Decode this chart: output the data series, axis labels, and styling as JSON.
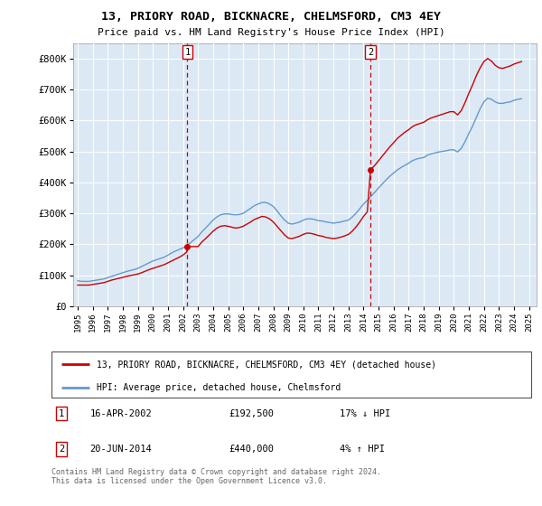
{
  "title": "13, PRIORY ROAD, BICKNACRE, CHELMSFORD, CM3 4EY",
  "subtitle": "Price paid vs. HM Land Registry's House Price Index (HPI)",
  "background_color": "#ffffff",
  "plot_bg_color": "#dce9f5",
  "ylim": [
    0,
    850000
  ],
  "yticks": [
    0,
    100000,
    200000,
    300000,
    400000,
    500000,
    600000,
    700000,
    800000
  ],
  "ytick_labels": [
    "£0",
    "£100K",
    "£200K",
    "£300K",
    "£400K",
    "£500K",
    "£600K",
    "£700K",
    "£800K"
  ],
  "xlim_start": 1994.7,
  "xlim_end": 2025.5,
  "purchase1_x": 2002.29,
  "purchase1_y": 192500,
  "purchase1_label": "16-APR-2002",
  "purchase1_price": "£192,500",
  "purchase1_hpi": "17% ↓ HPI",
  "purchase2_x": 2014.46,
  "purchase2_y": 440000,
  "purchase2_label": "20-JUN-2014",
  "purchase2_price": "£440,000",
  "purchase2_hpi": "4% ↑ HPI",
  "line1_color": "#cc0000",
  "line2_color": "#6699cc",
  "legend_label1": "13, PRIORY ROAD, BICKNACRE, CHELMSFORD, CM3 4EY (detached house)",
  "legend_label2": "HPI: Average price, detached house, Chelmsford",
  "footer": "Contains HM Land Registry data © Crown copyright and database right 2024.\nThis data is licensed under the Open Government Licence v3.0.",
  "hpi_data_x": [
    1995.0,
    1995.25,
    1995.5,
    1995.75,
    1996.0,
    1996.25,
    1996.5,
    1996.75,
    1997.0,
    1997.25,
    1997.5,
    1997.75,
    1998.0,
    1998.25,
    1998.5,
    1998.75,
    1999.0,
    1999.25,
    1999.5,
    1999.75,
    2000.0,
    2000.25,
    2000.5,
    2000.75,
    2001.0,
    2001.25,
    2001.5,
    2001.75,
    2002.0,
    2002.25,
    2002.5,
    2002.75,
    2003.0,
    2003.25,
    2003.5,
    2003.75,
    2004.0,
    2004.25,
    2004.5,
    2004.75,
    2005.0,
    2005.25,
    2005.5,
    2005.75,
    2006.0,
    2006.25,
    2006.5,
    2006.75,
    2007.0,
    2007.25,
    2007.5,
    2007.75,
    2008.0,
    2008.25,
    2008.5,
    2008.75,
    2009.0,
    2009.25,
    2009.5,
    2009.75,
    2010.0,
    2010.25,
    2010.5,
    2010.75,
    2011.0,
    2011.25,
    2011.5,
    2011.75,
    2012.0,
    2012.25,
    2012.5,
    2012.75,
    2013.0,
    2013.25,
    2013.5,
    2013.75,
    2014.0,
    2014.25,
    2014.5,
    2014.75,
    2015.0,
    2015.25,
    2015.5,
    2015.75,
    2016.0,
    2016.25,
    2016.5,
    2016.75,
    2017.0,
    2017.25,
    2017.5,
    2017.75,
    2018.0,
    2018.25,
    2018.5,
    2018.75,
    2019.0,
    2019.25,
    2019.5,
    2019.75,
    2020.0,
    2020.25,
    2020.5,
    2020.75,
    2021.0,
    2021.25,
    2021.5,
    2021.75,
    2022.0,
    2022.25,
    2022.5,
    2022.75,
    2023.0,
    2023.25,
    2023.5,
    2023.75,
    2024.0,
    2024.25,
    2024.5
  ],
  "hpi_data_y": [
    82000,
    80000,
    80000,
    80000,
    82000,
    84000,
    86000,
    88000,
    92000,
    96000,
    100000,
    104000,
    108000,
    112000,
    115000,
    118000,
    122000,
    128000,
    134000,
    140000,
    146000,
    150000,
    154000,
    158000,
    165000,
    172000,
    178000,
    183000,
    188000,
    195000,
    205000,
    215000,
    225000,
    240000,
    252000,
    265000,
    278000,
    288000,
    295000,
    298000,
    298000,
    296000,
    295000,
    296000,
    300000,
    308000,
    316000,
    325000,
    330000,
    335000,
    335000,
    330000,
    322000,
    308000,
    292000,
    278000,
    268000,
    265000,
    268000,
    272000,
    278000,
    282000,
    282000,
    280000,
    276000,
    275000,
    272000,
    270000,
    268000,
    270000,
    272000,
    275000,
    278000,
    288000,
    300000,
    315000,
    330000,
    342000,
    355000,
    368000,
    382000,
    395000,
    408000,
    420000,
    430000,
    440000,
    448000,
    455000,
    462000,
    470000,
    475000,
    478000,
    480000,
    488000,
    492000,
    495000,
    498000,
    500000,
    502000,
    505000,
    505000,
    498000,
    510000,
    532000,
    558000,
    582000,
    610000,
    638000,
    660000,
    672000,
    668000,
    660000,
    655000,
    655000,
    658000,
    660000,
    665000,
    668000,
    670000
  ],
  "price_data_x": [
    1995.0,
    1995.25,
    1995.5,
    1995.75,
    1996.0,
    1996.25,
    1996.5,
    1996.75,
    1997.0,
    1997.25,
    1997.5,
    1997.75,
    1998.0,
    1998.25,
    1998.5,
    1998.75,
    1999.0,
    1999.25,
    1999.5,
    1999.75,
    2000.0,
    2000.25,
    2000.5,
    2000.75,
    2001.0,
    2001.25,
    2001.5,
    2001.75,
    2002.0,
    2002.25,
    2002.29,
    2002.75,
    2003.0,
    2003.25,
    2003.5,
    2003.75,
    2004.0,
    2004.25,
    2004.5,
    2004.75,
    2005.0,
    2005.25,
    2005.5,
    2005.75,
    2006.0,
    2006.25,
    2006.5,
    2006.75,
    2007.0,
    2007.25,
    2007.5,
    2007.75,
    2008.0,
    2008.25,
    2008.5,
    2008.75,
    2009.0,
    2009.25,
    2009.5,
    2009.75,
    2010.0,
    2010.25,
    2010.5,
    2010.75,
    2011.0,
    2011.25,
    2011.5,
    2011.75,
    2012.0,
    2012.25,
    2012.5,
    2012.75,
    2013.0,
    2013.25,
    2013.5,
    2013.75,
    2014.0,
    2014.25,
    2014.46,
    2014.75,
    2015.0,
    2015.25,
    2015.5,
    2015.75,
    2016.0,
    2016.25,
    2016.5,
    2016.75,
    2017.0,
    2017.25,
    2017.5,
    2017.75,
    2018.0,
    2018.25,
    2018.5,
    2018.75,
    2019.0,
    2019.25,
    2019.5,
    2019.75,
    2020.0,
    2020.25,
    2020.5,
    2020.75,
    2021.0,
    2021.25,
    2021.5,
    2021.75,
    2022.0,
    2022.25,
    2022.5,
    2022.75,
    2023.0,
    2023.25,
    2023.5,
    2023.75,
    2024.0,
    2024.25,
    2024.5
  ],
  "price_data_y": [
    68000,
    68000,
    68000,
    68000,
    70000,
    72000,
    74000,
    76000,
    80000,
    84000,
    87000,
    90000,
    93000,
    96000,
    99000,
    101000,
    104000,
    108000,
    113000,
    118000,
    122000,
    126000,
    130000,
    134000,
    140000,
    146000,
    152000,
    158000,
    165000,
    175000,
    192500,
    192500,
    192500,
    207000,
    218000,
    230000,
    242000,
    252000,
    258000,
    260000,
    258000,
    255000,
    252000,
    254000,
    258000,
    265000,
    272000,
    280000,
    285000,
    290000,
    288000,
    282000,
    272000,
    258000,
    244000,
    230000,
    220000,
    218000,
    222000,
    226000,
    232000,
    236000,
    235000,
    232000,
    228000,
    226000,
    222000,
    220000,
    218000,
    220000,
    223000,
    227000,
    232000,
    242000,
    256000,
    272000,
    290000,
    305000,
    440000,
    455000,
    470000,
    485000,
    500000,
    515000,
    528000,
    542000,
    552000,
    562000,
    570000,
    580000,
    586000,
    590000,
    594000,
    602000,
    608000,
    612000,
    616000,
    620000,
    624000,
    628000,
    628000,
    618000,
    632000,
    658000,
    688000,
    715000,
    745000,
    770000,
    790000,
    800000,
    792000,
    778000,
    770000,
    768000,
    772000,
    776000,
    782000,
    786000,
    790000
  ]
}
